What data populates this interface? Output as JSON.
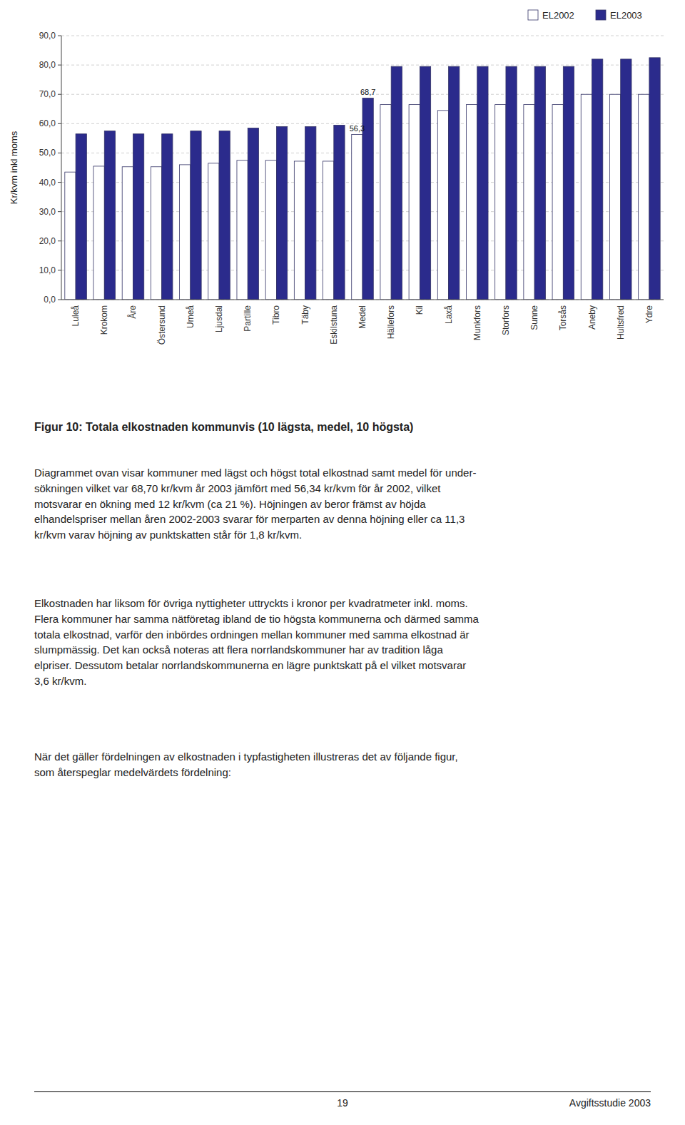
{
  "chart_data": {
    "type": "bar",
    "title": "Figur 10: Totala elkostnaden kommunvis (10 lägsta, medel, 10 högsta)",
    "y_label": "Kr/kvm inkl moms",
    "categories": [
      "Luleå",
      "Krokom",
      "Åre",
      "Östersund",
      "Umeå",
      "Ljusdal",
      "Partille",
      "Tibro",
      "Täby",
      "Eskilstuna",
      "Medel",
      "Hällefors",
      "Kil",
      "Laxå",
      "Munkfors",
      "Storfors",
      "Sunne",
      "Torsås",
      "Aneby",
      "Hultsfred",
      "Ydre"
    ],
    "series": [
      {
        "name": "EL2002",
        "color": "#ffffff",
        "values": [
          43.5,
          45.5,
          45.3,
          45.3,
          46.0,
          46.5,
          47.5,
          47.5,
          47.2,
          47.2,
          56.3,
          66.5,
          66.5,
          64.5,
          66.5,
          66.5,
          66.5,
          66.5,
          70.0,
          70.0,
          70.0
        ],
        "value_labels": [
          null,
          null,
          null,
          null,
          null,
          null,
          null,
          null,
          null,
          null,
          "56,3",
          null,
          null,
          null,
          null,
          null,
          null,
          null,
          null,
          null,
          null
        ]
      },
      {
        "name": "EL2003",
        "color": "#2b2b8c",
        "values": [
          56.5,
          57.5,
          56.5,
          56.5,
          57.5,
          57.5,
          58.5,
          59.0,
          59.0,
          59.5,
          68.7,
          79.5,
          79.5,
          79.5,
          79.5,
          79.5,
          79.5,
          79.5,
          82.0,
          82.0,
          82.5
        ],
        "value_labels": [
          null,
          null,
          null,
          null,
          null,
          null,
          null,
          null,
          null,
          null,
          "68,7",
          null,
          null,
          null,
          null,
          null,
          null,
          null,
          null,
          null,
          null
        ]
      }
    ],
    "ylim": [
      0,
      90
    ],
    "yticks": [
      {
        "value": 0,
        "label": "0,0"
      },
      {
        "value": 10,
        "label": "10,0"
      },
      {
        "value": 20,
        "label": "20,0"
      },
      {
        "value": 30,
        "label": "30,0"
      },
      {
        "value": 40,
        "label": "40,0"
      },
      {
        "value": 50,
        "label": "50,0"
      },
      {
        "value": 60,
        "label": "60,0"
      },
      {
        "value": 70,
        "label": "70,0"
      },
      {
        "value": 80,
        "label": "80,0"
      },
      {
        "value": 90,
        "label": "90,0"
      }
    ],
    "grid": true,
    "legend": "top-right",
    "annotations": [
      "Diagrammet ovan visar kommuner med lägst och högst total elkostnad samt medel för under-\nsökningen vilket var 68,70 kr/kvm år 2003 jämfört med 56,34 kr/kvm för år 2002, vilket\nmotsvarar en ökning med 12 kr/kvm (ca 21 %). Höjningen av beror främst av höjda\nelhandelspriser mellan åren 2002-2003 svarar för merparten av denna höjning eller ca 11,3\nkr/kvm varav höjning av punktskatten står för 1,8 kr/kvm.",
      "Elkostnaden har liksom för övriga nyttigheter uttryckts i kronor per kvadratmeter inkl. moms.\nFlera kommuner har samma nätföretag ibland de tio högsta kommunerna och därmed samma\ntotala elkostnad, varför den inbördes ordningen mellan kommuner med samma elkostnad är\nslumpmässig. Det kan också noteras att flera norrlandskommuner har av tradition låga\nelpriser. Dessutom betalar norrlandskommunerna en lägre punktskatt på el vilket motsvarar\n3,6 kr/kvm.",
      "När det gäller fördelningen av elkostnaden i typfastigheten illustreras det av följande figur,\nsom återspeglar medelvärdets fördelning:",
      "19",
      "Avgiftsstudie 2003"
    ]
  }
}
